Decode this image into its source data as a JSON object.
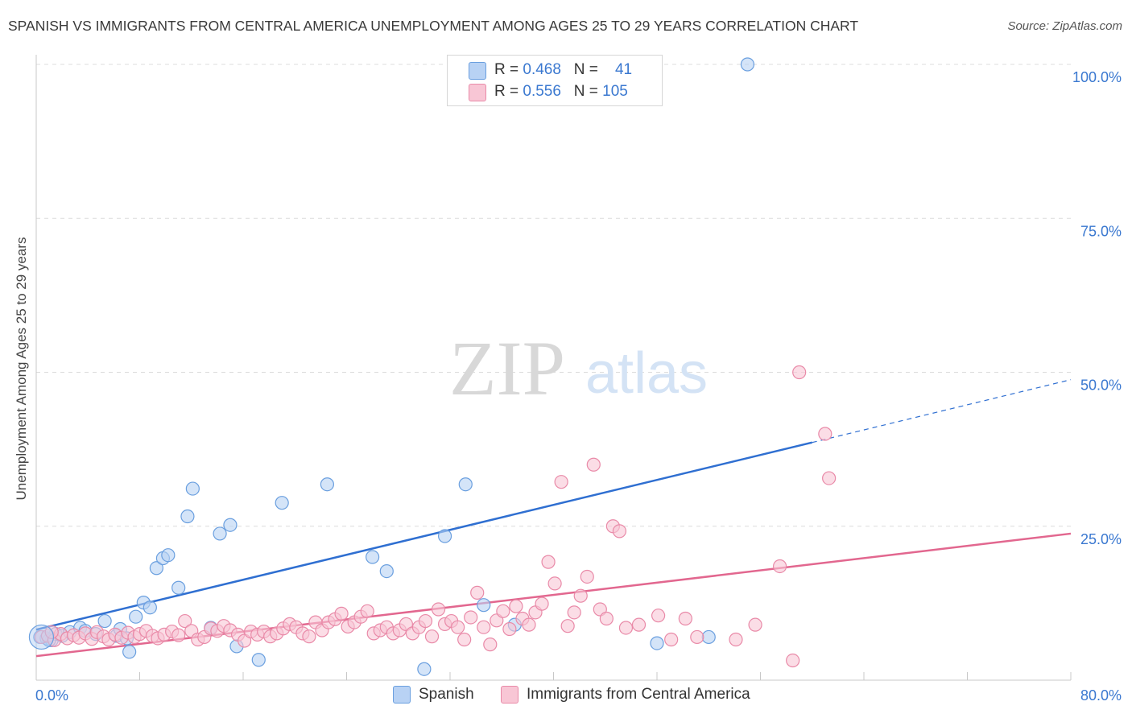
{
  "title": "SPANISH VS IMMIGRANTS FROM CENTRAL AMERICA UNEMPLOYMENT AMONG AGES 25 TO 29 YEARS CORRELATION CHART",
  "source": "Source: ZipAtlas.com",
  "watermark": {
    "zip": "ZIP",
    "atlas": "atlas"
  },
  "colors": {
    "blue_fill": "#b8d2f4",
    "blue_stroke": "#6a9fdf",
    "blue_line": "#2f6fd1",
    "pink_fill": "#f8c6d5",
    "pink_stroke": "#e98aa8",
    "pink_line": "#e2678f",
    "axis_label": "#3a78d0",
    "grid": "#dcdcdc"
  },
  "legend": {
    "rows": [
      {
        "r_label": "R = ",
        "r_value": "0.468",
        "n_label": "N = ",
        "n_value": "41"
      },
      {
        "r_label": "R = ",
        "r_value": "0.556",
        "n_label": "N = ",
        "n_value": "105"
      }
    ]
  },
  "bottom_legend": [
    "Spanish",
    "Immigrants from Central America"
  ],
  "chart_data": {
    "type": "scatter",
    "title": "SPANISH VS IMMIGRANTS FROM CENTRAL AMERICA UNEMPLOYMENT AMONG AGES 25 TO 29 YEARS CORRELATION CHART",
    "xlabel": "",
    "ylabel": "Unemployment Among Ages 25 to 29 years",
    "xlim": [
      0,
      80
    ],
    "ylim": [
      0,
      100
    ],
    "x_tick_labels": [
      "0.0%",
      "80.0%"
    ],
    "y_tick_labels": [
      "100.0%",
      "75.0%",
      "50.0%",
      "25.0%"
    ],
    "y_ticks": [
      100,
      75,
      50,
      25
    ],
    "grid": true,
    "legend_position": "top-center",
    "series": [
      {
        "name": "Spanish",
        "color": "blue",
        "trend": {
          "x0": 0,
          "y0": 8.2,
          "x1": 60,
          "y1": 38.6,
          "dash_to": 80,
          "dash_y": 48.8
        },
        "points": [
          [
            0.3,
            7
          ],
          [
            0.8,
            6.8
          ],
          [
            1.2,
            6.5
          ],
          [
            1.5,
            7.5
          ],
          [
            2.0,
            7.2
          ],
          [
            2.6,
            7.8
          ],
          [
            3.4,
            8.5
          ],
          [
            3.8,
            8.0
          ],
          [
            4.6,
            7.5
          ],
          [
            5.3,
            9.6
          ],
          [
            6.2,
            7.2
          ],
          [
            6.5,
            8.3
          ],
          [
            7.0,
            6.8
          ],
          [
            7.2,
            4.6
          ],
          [
            7.7,
            10.3
          ],
          [
            8.3,
            12.6
          ],
          [
            8.8,
            11.8
          ],
          [
            9.3,
            18.2
          ],
          [
            9.8,
            19.8
          ],
          [
            10.2,
            20.3
          ],
          [
            11.0,
            15.0
          ],
          [
            11.7,
            26.6
          ],
          [
            12.1,
            31.1
          ],
          [
            13.5,
            8.5
          ],
          [
            14.2,
            23.8
          ],
          [
            15.0,
            25.2
          ],
          [
            15.5,
            5.5
          ],
          [
            17.2,
            3.3
          ],
          [
            19.0,
            28.8
          ],
          [
            22.5,
            31.8
          ],
          [
            26.0,
            20.0
          ],
          [
            27.1,
            17.7
          ],
          [
            30.0,
            1.8
          ],
          [
            31.6,
            23.4
          ],
          [
            33.2,
            31.8
          ],
          [
            34.6,
            12.2
          ],
          [
            37.0,
            9.0
          ],
          [
            48.0,
            6.0
          ],
          [
            52.0,
            7.0
          ],
          [
            55.0,
            100.0
          ],
          [
            1.0,
            6.5
          ]
        ]
      },
      {
        "name": "Immigrants from Central America",
        "color": "pink",
        "trend": {
          "x0": 0,
          "y0": 3.9,
          "x1": 80,
          "y1": 23.8
        },
        "points": [
          [
            0.4,
            7
          ],
          [
            0.9,
            7.2
          ],
          [
            1.4,
            6.5
          ],
          [
            1.9,
            7.5
          ],
          [
            2.4,
            6.8
          ],
          [
            2.9,
            7.3
          ],
          [
            3.3,
            6.9
          ],
          [
            3.8,
            7.6
          ],
          [
            4.3,
            6.7
          ],
          [
            4.7,
            7.8
          ],
          [
            5.2,
            7.1
          ],
          [
            5.6,
            6.6
          ],
          [
            6.1,
            7.4
          ],
          [
            6.6,
            6.9
          ],
          [
            7.1,
            7.7
          ],
          [
            7.6,
            7.0
          ],
          [
            8.0,
            7.5
          ],
          [
            8.5,
            8.0
          ],
          [
            9.0,
            7.2
          ],
          [
            9.4,
            6.8
          ],
          [
            9.9,
            7.4
          ],
          [
            10.5,
            7.9
          ],
          [
            11.0,
            7.3
          ],
          [
            11.5,
            9.6
          ],
          [
            12.0,
            8.0
          ],
          [
            12.5,
            6.6
          ],
          [
            13.0,
            7.0
          ],
          [
            13.5,
            8.4
          ],
          [
            14.0,
            8.0
          ],
          [
            14.5,
            8.8
          ],
          [
            15.0,
            8.1
          ],
          [
            15.6,
            7.4
          ],
          [
            16.1,
            6.4
          ],
          [
            16.6,
            7.9
          ],
          [
            17.1,
            7.4
          ],
          [
            17.6,
            7.9
          ],
          [
            18.1,
            7.1
          ],
          [
            18.6,
            7.6
          ],
          [
            19.1,
            8.4
          ],
          [
            19.6,
            9.1
          ],
          [
            20.1,
            8.6
          ],
          [
            20.6,
            7.6
          ],
          [
            21.1,
            7.1
          ],
          [
            21.6,
            9.4
          ],
          [
            22.1,
            8.1
          ],
          [
            22.6,
            9.4
          ],
          [
            23.1,
            9.9
          ],
          [
            23.6,
            10.8
          ],
          [
            24.1,
            8.7
          ],
          [
            24.6,
            9.4
          ],
          [
            25.1,
            10.3
          ],
          [
            25.6,
            11.2
          ],
          [
            26.1,
            7.6
          ],
          [
            26.6,
            8.1
          ],
          [
            27.1,
            8.6
          ],
          [
            27.6,
            7.6
          ],
          [
            28.1,
            8.1
          ],
          [
            28.6,
            9.1
          ],
          [
            29.1,
            7.6
          ],
          [
            29.6,
            8.6
          ],
          [
            30.1,
            9.6
          ],
          [
            30.6,
            7.1
          ],
          [
            31.1,
            11.5
          ],
          [
            31.6,
            9.1
          ],
          [
            32.1,
            9.6
          ],
          [
            32.6,
            8.6
          ],
          [
            33.1,
            6.6
          ],
          [
            33.6,
            10.2
          ],
          [
            34.1,
            14.2
          ],
          [
            34.6,
            8.6
          ],
          [
            35.1,
            5.8
          ],
          [
            35.6,
            9.7
          ],
          [
            36.1,
            11.2
          ],
          [
            36.6,
            8.3
          ],
          [
            37.1,
            12.0
          ],
          [
            37.6,
            10.0
          ],
          [
            38.1,
            9.0
          ],
          [
            38.6,
            11.0
          ],
          [
            39.1,
            12.4
          ],
          [
            39.6,
            19.2
          ],
          [
            40.1,
            15.7
          ],
          [
            40.6,
            32.2
          ],
          [
            41.1,
            8.8
          ],
          [
            41.6,
            11.0
          ],
          [
            42.1,
            13.7
          ],
          [
            42.6,
            16.8
          ],
          [
            43.1,
            35.0
          ],
          [
            43.6,
            11.5
          ],
          [
            44.1,
            10.0
          ],
          [
            44.6,
            25.0
          ],
          [
            45.1,
            24.2
          ],
          [
            45.6,
            8.5
          ],
          [
            46.6,
            9.0
          ],
          [
            48.1,
            10.5
          ],
          [
            49.1,
            6.6
          ],
          [
            50.2,
            10.0
          ],
          [
            51.1,
            7.0
          ],
          [
            54.1,
            6.6
          ],
          [
            55.6,
            9.0
          ],
          [
            57.5,
            18.5
          ],
          [
            59.0,
            50.0
          ],
          [
            61.0,
            40.0
          ],
          [
            58.5,
            3.2
          ],
          [
            61.3,
            32.8
          ],
          [
            1.2,
            7.8
          ]
        ]
      }
    ]
  }
}
